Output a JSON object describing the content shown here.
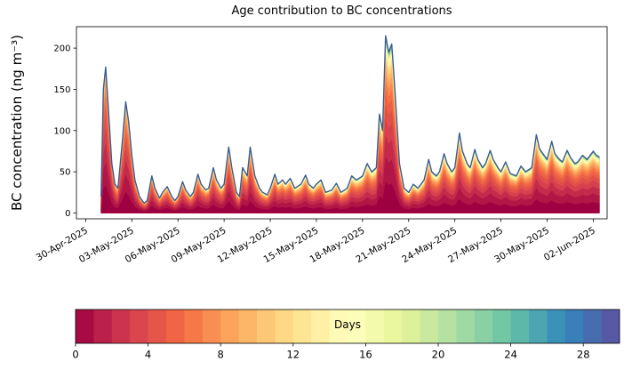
{
  "chart_data": {
    "type": "area",
    "title": "Age contribution to BC concentrations",
    "ylabel": "BC concentration (ng m⁻³)",
    "xlabel": "",
    "legend": "none",
    "grid": false,
    "line_color": "#3b5b92",
    "age_bins": 30,
    "age_tau_days": 5,
    "age_window_offset": 12,
    "xlim": [
      -0.6,
      33.9
    ],
    "ylim": [
      -7,
      226
    ],
    "y_ticks": [
      0,
      50,
      100,
      150,
      200
    ],
    "x_tick_days": [
      0,
      3,
      6,
      9,
      12,
      15,
      18,
      21,
      24,
      27,
      30,
      33
    ],
    "x_tick_labels": [
      "30-Apr-2025",
      "03-May-2025",
      "06-May-2025",
      "09-May-2025",
      "12-May-2025",
      "15-May-2025",
      "18-May-2025",
      "21-May-2025",
      "24-May-2025",
      "27-May-2025",
      "30-May-2025",
      "02-Jun-2025"
    ],
    "total_series": {
      "x_days": [
        1.0,
        1.15,
        1.3,
        1.5,
        1.7,
        1.9,
        2.1,
        2.4,
        2.6,
        2.8,
        3.0,
        3.2,
        3.5,
        3.8,
        4.0,
        4.3,
        4.5,
        4.8,
        5.0,
        5.3,
        5.6,
        5.8,
        6.0,
        6.3,
        6.5,
        6.8,
        7.0,
        7.3,
        7.5,
        7.8,
        8.0,
        8.3,
        8.5,
        8.8,
        9.0,
        9.3,
        9.5,
        9.8,
        10.0,
        10.2,
        10.5,
        10.7,
        11.0,
        11.3,
        11.5,
        11.8,
        12.0,
        12.3,
        12.5,
        12.8,
        13.0,
        13.3,
        13.6,
        14.0,
        14.3,
        14.5,
        14.8,
        15.0,
        15.3,
        15.6,
        16.0,
        16.3,
        16.6,
        17.0,
        17.3,
        17.6,
        18.0,
        18.3,
        18.6,
        18.9,
        19.1,
        19.3,
        19.5,
        19.7,
        19.9,
        20.1,
        20.4,
        20.7,
        21.0,
        21.3,
        21.6,
        22.0,
        22.3,
        22.5,
        22.8,
        23.0,
        23.3,
        23.5,
        23.8,
        24.0,
        24.3,
        24.5,
        24.8,
        25.0,
        25.3,
        25.5,
        25.8,
        26.0,
        26.3,
        26.5,
        26.8,
        27.0,
        27.3,
        27.6,
        28.0,
        28.3,
        28.6,
        29.0,
        29.3,
        29.5,
        29.8,
        30.0,
        30.3,
        30.5,
        30.8,
        31.0,
        31.3,
        31.5,
        31.8,
        32.0,
        32.3,
        32.6,
        33.0,
        33.2,
        33.4
      ],
      "values": [
        20,
        150,
        177,
        120,
        60,
        35,
        30,
        90,
        135,
        110,
        70,
        40,
        20,
        12,
        15,
        45,
        30,
        18,
        25,
        32,
        20,
        15,
        20,
        38,
        28,
        20,
        25,
        47,
        35,
        28,
        30,
        55,
        40,
        30,
        35,
        80,
        55,
        25,
        20,
        55,
        45,
        80,
        45,
        30,
        25,
        22,
        30,
        47,
        35,
        40,
        35,
        42,
        30,
        35,
        46,
        35,
        30,
        35,
        40,
        25,
        28,
        36,
        25,
        30,
        45,
        40,
        45,
        60,
        50,
        55,
        120,
        100,
        215,
        195,
        205,
        150,
        60,
        30,
        25,
        35,
        30,
        40,
        65,
        50,
        45,
        50,
        72,
        60,
        50,
        55,
        97,
        75,
        60,
        55,
        77,
        65,
        55,
        60,
        76,
        65,
        55,
        50,
        62,
        48,
        45,
        57,
        50,
        55,
        95,
        78,
        70,
        65,
        87,
        72,
        65,
        62,
        76,
        68,
        60,
        62,
        70,
        65,
        75,
        70,
        68
      ]
    },
    "colorbar": {
      "label": "Days",
      "vmin": 0,
      "vmax": 30,
      "ticks": [
        0,
        4,
        8,
        12,
        16,
        20,
        24,
        28
      ],
      "stops": [
        [
          0.0,
          "#9e0142"
        ],
        [
          0.1,
          "#d53e4f"
        ],
        [
          0.2,
          "#f46d43"
        ],
        [
          0.3,
          "#fdae61"
        ],
        [
          0.4,
          "#fee08b"
        ],
        [
          0.5,
          "#ffffbf"
        ],
        [
          0.6,
          "#e6f598"
        ],
        [
          0.7,
          "#abdda4"
        ],
        [
          0.8,
          "#66c2a5"
        ],
        [
          0.9,
          "#3288bd"
        ],
        [
          1.0,
          "#5e4fa2"
        ]
      ]
    }
  }
}
